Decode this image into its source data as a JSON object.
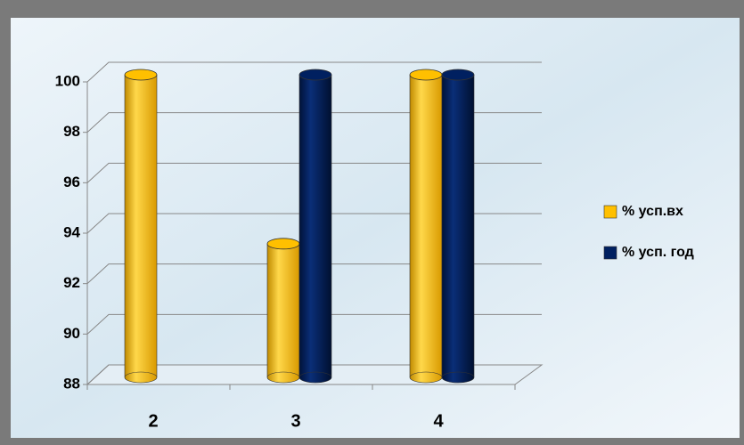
{
  "chart_data": {
    "type": "bar3d",
    "categories": [
      "2",
      "3",
      "4"
    ],
    "series": [
      {
        "name": "% усп.вх",
        "color": "#ffc000",
        "values": [
          100,
          93.3,
          100
        ]
      },
      {
        "name": "% усп. год",
        "color": "#002060",
        "values": [
          null,
          100,
          100
        ]
      }
    ],
    "ylim": [
      88,
      100
    ],
    "yticks": [
      88,
      90,
      92,
      94,
      96,
      98,
      100
    ],
    "grid": true,
    "legend": "right"
  }
}
